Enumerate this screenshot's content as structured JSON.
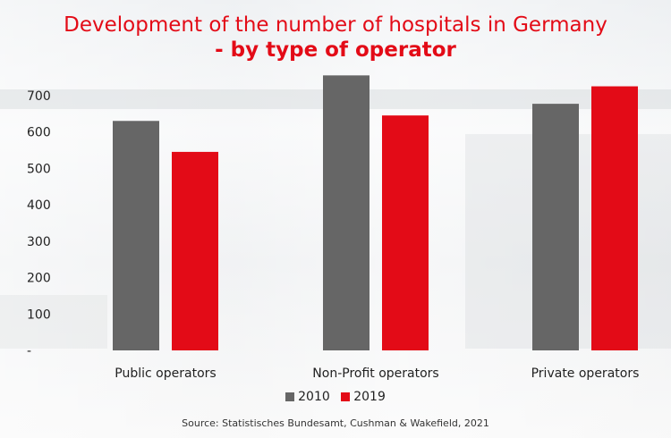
{
  "title_line1": "Development of the number of hospitals in Germany",
  "title_line2": "- by type of operator",
  "source": "Source: Statistisches Bundesamt, Cushman & Wakefield, 2021",
  "colors": {
    "s2010": "#666666",
    "s2019": "#e30b17",
    "title": "#e30b17"
  },
  "chart_data": {
    "type": "bar",
    "title": "Development of the number of hospitals in Germany - by type of operator",
    "categories": [
      "Public operators",
      "Non-Profit operators",
      "Private operators"
    ],
    "series": [
      {
        "name": "2010",
        "values": [
          630,
          755,
          677
        ]
      },
      {
        "name": "2019",
        "values": [
          545,
          645,
          725
        ]
      }
    ],
    "ylim": [
      0,
      800
    ],
    "yticks": [
      0,
      100,
      200,
      300,
      400,
      500,
      600,
      700
    ],
    "ytick_labels": [
      "-",
      "100",
      "200",
      "300",
      "400",
      "500",
      "600",
      "700"
    ],
    "xlabel": "",
    "ylabel": "",
    "legend_position": "bottom"
  }
}
